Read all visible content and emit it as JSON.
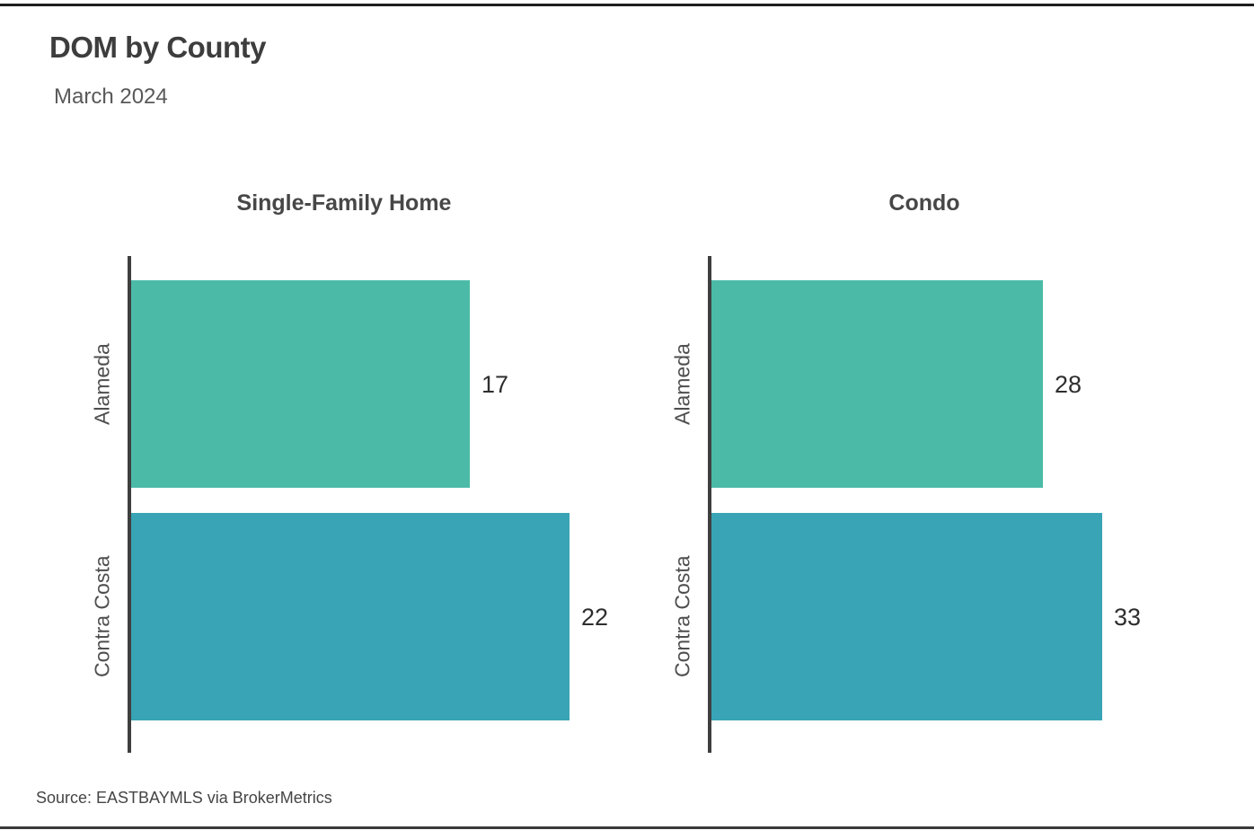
{
  "page": {
    "title": "DOM by County",
    "subtitle": "March 2024",
    "source": "Source:  EASTBAYMLS via BrokerMetrics"
  },
  "style": {
    "bar_color_alameda": "#4bbba8",
    "bar_color_contra_costa": "#38a4b5",
    "axis_color": "#3f3f3f",
    "title_color": "#3d3d3d"
  },
  "chart_data": [
    {
      "type": "bar",
      "orientation": "horizontal",
      "title": "Single-Family Home",
      "categories": [
        "Alameda",
        "Contra Costa"
      ],
      "values": [
        17,
        22
      ],
      "value_labels": [
        "17",
        "22"
      ],
      "bar_colors": [
        "#4bbba8",
        "#38a4b5"
      ],
      "xlim": [
        0,
        25
      ],
      "grid": false,
      "legend": "none"
    },
    {
      "type": "bar",
      "orientation": "horizontal",
      "title": "Condo",
      "categories": [
        "Alameda",
        "Contra Costa"
      ],
      "values": [
        28,
        33
      ],
      "value_labels": [
        "28",
        "33"
      ],
      "bar_colors": [
        "#4bbba8",
        "#38a4b5"
      ],
      "xlim": [
        0,
        42
      ],
      "grid": false,
      "legend": "none"
    }
  ]
}
